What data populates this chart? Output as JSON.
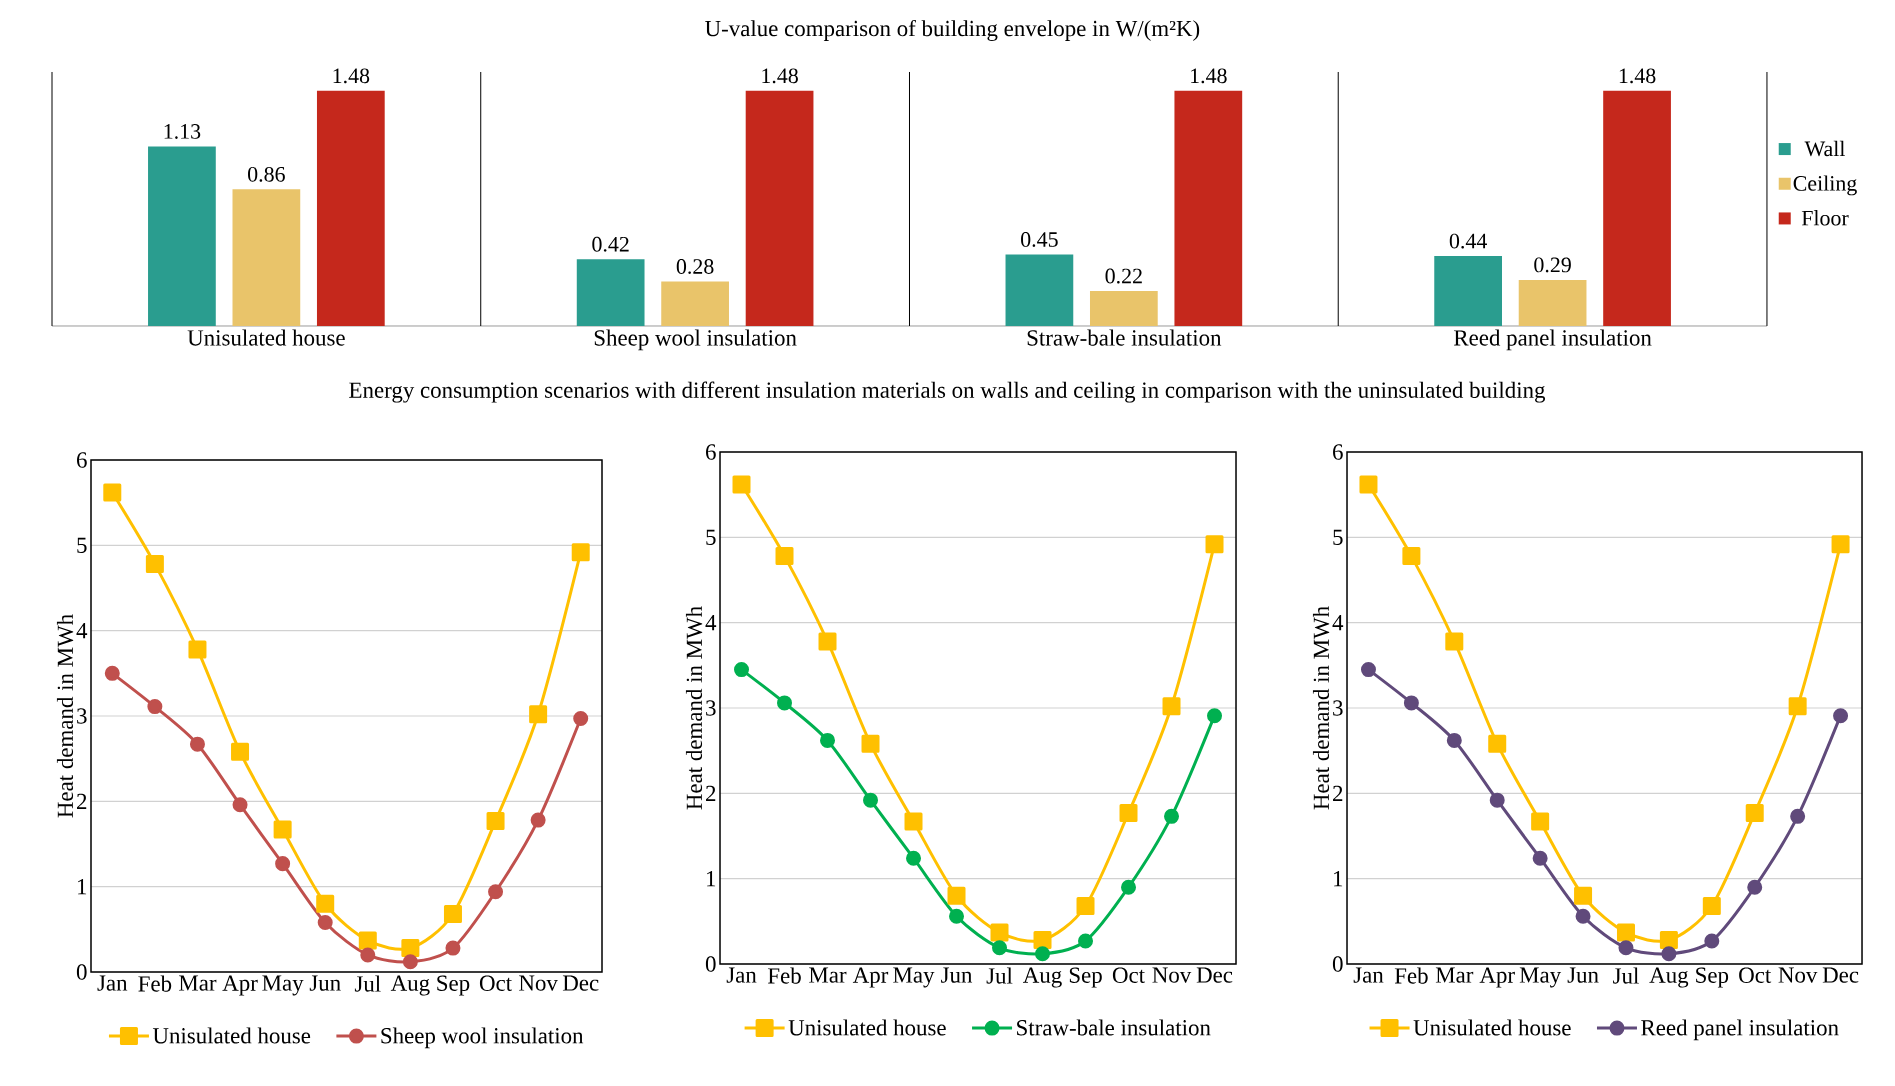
{
  "chart_data": [
    {
      "type": "bar",
      "title": "U-value comparison of building envelope in W/(m²K)",
      "categories": [
        "Unisulated house",
        "Sheep wool insulation",
        "Straw-bale insulation",
        "Reed panel insulation"
      ],
      "data_labels": true,
      "legend": "right",
      "series": [
        {
          "name": "Wall",
          "color": "#2A9D8F",
          "values": [
            1.13,
            0.42,
            0.45,
            0.44
          ]
        },
        {
          "name": "Ceiling",
          "color": "#E9C46A",
          "values": [
            0.86,
            0.28,
            0.22,
            0.29
          ]
        },
        {
          "name": "Floor",
          "color": "#C5281C",
          "values": [
            1.48,
            1.48,
            1.48,
            1.48
          ]
        }
      ]
    },
    {
      "type": "line",
      "title": "Energy consumption scenarios with different insulation materials on walls and ceiling in comparison with the uninsulated building",
      "ylabel": "Heat demand in MWh",
      "categories": [
        "Jan",
        "Feb",
        "Mar",
        "Apr",
        "May",
        "Jun",
        "Jul",
        "Aug",
        "Sep",
        "Oct",
        "Nov",
        "Dec"
      ],
      "ylim": [
        0,
        6
      ],
      "yticks": [
        0,
        1,
        2,
        3,
        4,
        5,
        6
      ],
      "grid": "y",
      "legend": "bottom",
      "series": [
        {
          "name": "Unisulated house",
          "color": "#FFC000",
          "marker": "square",
          "values": [
            5.62,
            4.78,
            3.78,
            2.58,
            1.67,
            0.8,
            0.37,
            0.28,
            0.68,
            1.77,
            3.02,
            4.92
          ]
        },
        {
          "name": "Sheep wool insulation",
          "color": "#C0504D",
          "marker": "circle",
          "values": [
            3.5,
            3.11,
            2.67,
            1.96,
            1.27,
            0.58,
            0.2,
            0.12,
            0.28,
            0.94,
            1.78,
            2.97
          ]
        }
      ]
    },
    {
      "type": "line",
      "ylabel": "Heat demand in MWh",
      "categories": [
        "Jan",
        "Feb",
        "Mar",
        "Apr",
        "May",
        "Jun",
        "Jul",
        "Aug",
        "Sep",
        "Oct",
        "Nov",
        "Dec"
      ],
      "ylim": [
        0,
        6
      ],
      "yticks": [
        0,
        1,
        2,
        3,
        4,
        5,
        6
      ],
      "grid": "y",
      "legend": "bottom",
      "series": [
        {
          "name": "Unisulated house",
          "color": "#FFC000",
          "marker": "square",
          "values": [
            5.62,
            4.78,
            3.78,
            2.58,
            1.67,
            0.8,
            0.37,
            0.28,
            0.68,
            1.77,
            3.02,
            4.92
          ]
        },
        {
          "name": "Straw-bale insulation",
          "color": "#00B050",
          "marker": "circle",
          "values": [
            3.45,
            3.06,
            2.62,
            1.92,
            1.24,
            0.56,
            0.19,
            0.12,
            0.27,
            0.9,
            1.73,
            2.91
          ]
        }
      ]
    },
    {
      "type": "line",
      "ylabel": "Heat demand in MWh",
      "categories": [
        "Jan",
        "Feb",
        "Mar",
        "Apr",
        "May",
        "Jun",
        "Jul",
        "Aug",
        "Sep",
        "Oct",
        "Nov",
        "Dec"
      ],
      "ylim": [
        0,
        6
      ],
      "yticks": [
        0,
        1,
        2,
        3,
        4,
        5,
        6
      ],
      "grid": "y",
      "legend": "bottom",
      "series": [
        {
          "name": "Unisulated house",
          "color": "#FFC000",
          "marker": "square",
          "values": [
            5.62,
            4.78,
            3.78,
            2.58,
            1.67,
            0.8,
            0.37,
            0.28,
            0.68,
            1.77,
            3.02,
            4.92
          ]
        },
        {
          "name": "Reed panel insulation",
          "color": "#604A7B",
          "marker": "circle",
          "values": [
            3.45,
            3.06,
            2.62,
            1.92,
            1.24,
            0.56,
            0.19,
            0.12,
            0.27,
            0.9,
            1.73,
            2.91
          ]
        }
      ]
    }
  ]
}
